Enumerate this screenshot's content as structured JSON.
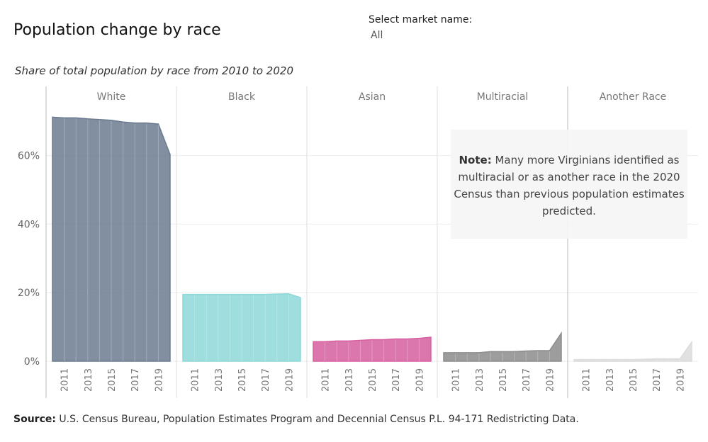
{
  "header": {
    "title": "Population change by race",
    "filter_label": "Select market name:",
    "filter_value": "All",
    "subtitle": "Share of total population by race from 2010 to 2020"
  },
  "note": {
    "label": "Note:",
    "text": "Many more Virginians identified as multiracial or as another race in the 2020 Census than previous population estimates predicted."
  },
  "source": {
    "label": "Source:",
    "text": "U.S. Census Bureau, Population Estimates Program and Decennial Census P.L. 94-171 Redistricting Data."
  },
  "colors": {
    "White": "#6b7b8f",
    "Black": "#8dd8d8",
    "Asian": "#d65fa0",
    "Multiracial": "#8c8c8c",
    "Another Race": "#dcdcdc"
  },
  "chart_data": {
    "type": "area",
    "title": "Share of total population by race from 2010 to 2020",
    "x": [
      2010,
      2011,
      2012,
      2013,
      2014,
      2015,
      2016,
      2017,
      2018,
      2019,
      2020
    ],
    "x_tick_labels": [
      "2011",
      "2013",
      "2015",
      "2017",
      "2019"
    ],
    "y_tick_labels": [
      "0%",
      "20%",
      "40%",
      "60%"
    ],
    "ylim": [
      0,
      73
    ],
    "ylabel": "",
    "xlabel": "",
    "series": [
      {
        "name": "White",
        "values": [
          71.2,
          71.0,
          71.0,
          70.7,
          70.5,
          70.3,
          69.8,
          69.5,
          69.5,
          69.2,
          60.3
        ]
      },
      {
        "name": "Black",
        "values": [
          19.5,
          19.5,
          19.5,
          19.5,
          19.5,
          19.5,
          19.5,
          19.5,
          19.6,
          19.7,
          18.6
        ]
      },
      {
        "name": "Asian",
        "values": [
          5.7,
          5.7,
          5.9,
          5.9,
          6.1,
          6.3,
          6.3,
          6.5,
          6.5,
          6.7,
          7.0
        ]
      },
      {
        "name": "Multiracial",
        "values": [
          2.5,
          2.5,
          2.5,
          2.5,
          2.8,
          2.8,
          2.8,
          3.0,
          3.1,
          3.1,
          8.2
        ]
      },
      {
        "name": "Another Race",
        "values": [
          0.5,
          0.5,
          0.5,
          0.5,
          0.5,
          0.5,
          0.6,
          0.7,
          0.7,
          0.7,
          5.6
        ]
      }
    ]
  }
}
